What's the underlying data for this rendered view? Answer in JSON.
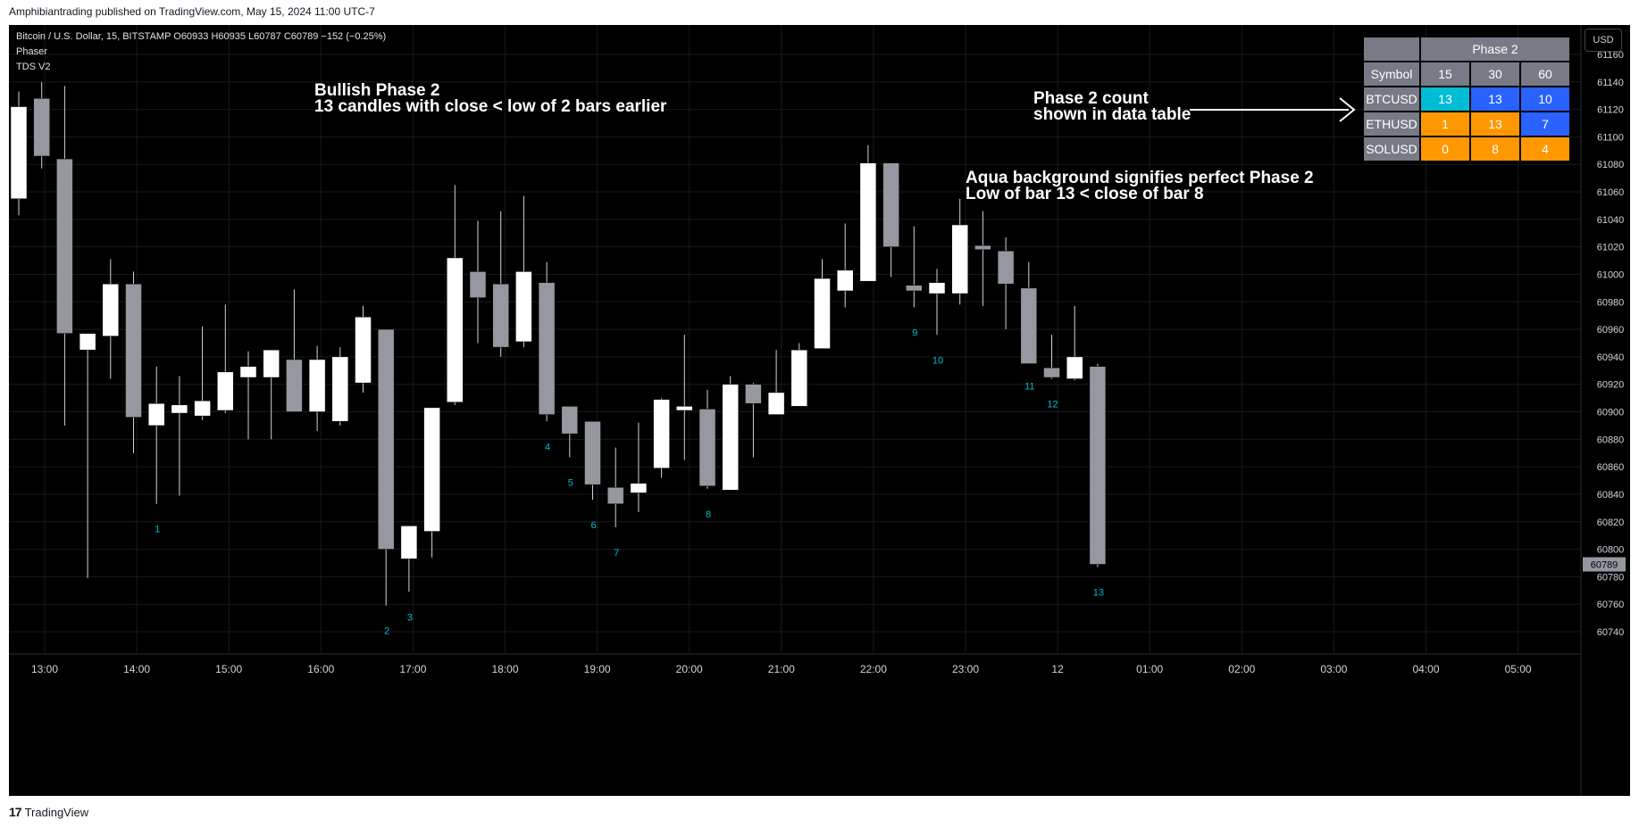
{
  "header": {
    "credit": "Amphibiantrading published on TradingView.com, May 15, 2024 11:00 UTC-7"
  },
  "legend": {
    "symbol_line": "Bitcoin / U.S. Dollar, 15, BITSTAMP  O60933  H60935  L60787  C60789  −152 (−0.25%)",
    "indicator_1": "Phaser",
    "indicator_2": "TDS V2"
  },
  "currency_button": "USD",
  "annotations": {
    "bullish_title": "Bullish Phase 2",
    "bullish_desc": "13 candles with close < low of 2 bars earlier",
    "count_note_1": "Phase 2 count",
    "count_note_2": "shown in data table",
    "aqua_note_1": "Aqua background signifies perfect Phase 2",
    "aqua_note_2": "Low of bar 13 < close of bar 8"
  },
  "table": {
    "header_blank": "",
    "header_title": "Phase 2",
    "columns": [
      "Symbol",
      "15",
      "30",
      "60"
    ],
    "rows": [
      {
        "symbol": "BTCUSD",
        "values": [
          "13",
          "13",
          "10"
        ],
        "colors": [
          "#00bcd4",
          "#2962ff",
          "#2962ff"
        ]
      },
      {
        "symbol": "ETHUSD",
        "values": [
          "1",
          "13",
          "7"
        ],
        "colors": [
          "#ff9800",
          "#ff9800",
          "#2962ff"
        ]
      },
      {
        "symbol": "SOLUSD",
        "values": [
          "0",
          "8",
          "4"
        ],
        "colors": [
          "#ff9800",
          "#ff9800",
          "#ff9800"
        ]
      }
    ]
  },
  "footer": {
    "brand": "TradingView"
  },
  "chart_data": {
    "type": "candlestick",
    "ylim": [
      60720,
      61180
    ],
    "y_ticks": [
      60740,
      60760,
      60780,
      60800,
      60820,
      60840,
      60860,
      60880,
      60900,
      60920,
      60940,
      60960,
      60980,
      61000,
      61020,
      61040,
      61060,
      61080,
      61100,
      61120,
      61140,
      61160
    ],
    "x_ticks": [
      "13:00",
      "14:00",
      "15:00",
      "16:00",
      "17:00",
      "18:00",
      "19:00",
      "20:00",
      "21:00",
      "22:00",
      "23:00",
      "12",
      "01:00",
      "02:00",
      "03:00",
      "04:00",
      "05:00"
    ],
    "last_price_label": "60789",
    "candles": [
      {
        "time": "12:45",
        "o": 61055,
        "h": 61133,
        "l": 61043,
        "c": 61122
      },
      {
        "time": "13:00",
        "o": 61128,
        "h": 61140,
        "l": 61077,
        "c": 61086
      },
      {
        "time": "13:15",
        "o": 61084,
        "h": 61137,
        "l": 60890,
        "c": 60957
      },
      {
        "time": "13:30",
        "o": 60945,
        "h": 60957,
        "l": 60779,
        "c": 60957
      },
      {
        "time": "13:45",
        "o": 60955,
        "h": 61011,
        "l": 60924,
        "c": 60993
      },
      {
        "time": "14:00",
        "o": 60993,
        "h": 61002,
        "l": 60870,
        "c": 60896
      },
      {
        "time": "14:15",
        "o": 60890,
        "h": 60933,
        "l": 60833,
        "c": 60906
      },
      {
        "time": "14:30",
        "o": 60899,
        "h": 60926,
        "l": 60839,
        "c": 60905
      },
      {
        "time": "14:45",
        "o": 60897,
        "h": 60962,
        "l": 60894,
        "c": 60908
      },
      {
        "time": "15:00",
        "o": 60901,
        "h": 60978,
        "l": 60899,
        "c": 60929
      },
      {
        "time": "15:15",
        "o": 60925,
        "h": 60944,
        "l": 60880,
        "c": 60933
      },
      {
        "time": "15:30",
        "o": 60925,
        "h": 60943,
        "l": 60880,
        "c": 60945
      },
      {
        "time": "15:45",
        "o": 60938,
        "h": 60989,
        "l": 60904,
        "c": 60900
      },
      {
        "time": "16:00",
        "o": 60900,
        "h": 60948,
        "l": 60886,
        "c": 60938
      },
      {
        "time": "16:15",
        "o": 60893,
        "h": 60947,
        "l": 60890,
        "c": 60940
      },
      {
        "time": "16:30",
        "o": 60921,
        "h": 60977,
        "l": 60914,
        "c": 60969
      },
      {
        "time": "16:45",
        "o": 60960,
        "h": 60960,
        "l": 60759,
        "c": 60800,
        "label": "2"
      },
      {
        "time": "17:00",
        "o": 60793,
        "h": 60817,
        "l": 60769,
        "c": 60817,
        "label": "3"
      },
      {
        "time": "17:15",
        "o": 60813,
        "h": 60903,
        "l": 60794,
        "c": 60903
      },
      {
        "time": "17:30",
        "o": 60907,
        "h": 61065,
        "l": 60905,
        "c": 61012
      },
      {
        "time": "17:45",
        "o": 61002,
        "h": 61039,
        "l": 60950,
        "c": 60983
      },
      {
        "time": "18:00",
        "o": 60993,
        "h": 61046,
        "l": 60940,
        "c": 60947
      },
      {
        "time": "18:15",
        "o": 60951,
        "h": 61057,
        "l": 60947,
        "c": 61002
      },
      {
        "time": "18:30",
        "o": 60994,
        "h": 61009,
        "l": 60893,
        "c": 60898,
        "label": "4"
      },
      {
        "time": "18:45",
        "o": 60904,
        "h": 60904,
        "l": 60867,
        "c": 60884,
        "label": "5"
      },
      {
        "time": "19:00",
        "o": 60893,
        "h": 60893,
        "l": 60836,
        "c": 60847,
        "label": "6"
      },
      {
        "time": "19:15",
        "o": 60845,
        "h": 60874,
        "l": 60816,
        "c": 60833,
        "label": "7"
      },
      {
        "time": "19:30",
        "o": 60841,
        "h": 60892,
        "l": 60827,
        "c": 60848
      },
      {
        "time": "19:45",
        "o": 60859,
        "h": 60910,
        "l": 60852,
        "c": 60909
      },
      {
        "time": "20:00",
        "o": 60901,
        "h": 60956,
        "l": 60865,
        "c": 60904
      },
      {
        "time": "20:15",
        "o": 60902,
        "h": 60916,
        "l": 60844,
        "c": 60846,
        "label": "8"
      },
      {
        "time": "20:30",
        "o": 60843,
        "h": 60926,
        "l": 60843,
        "c": 60920
      },
      {
        "time": "20:45",
        "o": 60920,
        "h": 60921,
        "l": 60867,
        "c": 60906
      },
      {
        "time": "21:00",
        "o": 60898,
        "h": 60945,
        "l": 60898,
        "c": 60914
      },
      {
        "time": "21:15",
        "o": 60904,
        "h": 60950,
        "l": 60904,
        "c": 60945
      },
      {
        "time": "21:30",
        "o": 60946,
        "h": 61011,
        "l": 60946,
        "c": 60997
      },
      {
        "time": "21:45",
        "o": 60988,
        "h": 61037,
        "l": 60976,
        "c": 61003
      },
      {
        "time": "22:00",
        "o": 60995,
        "h": 61094,
        "l": 60995,
        "c": 61081
      },
      {
        "time": "22:15",
        "o": 61081,
        "h": 61081,
        "l": 60998,
        "c": 61020
      },
      {
        "time": "22:30",
        "o": 60992,
        "h": 61035,
        "l": 60976,
        "c": 60988,
        "label": "9"
      },
      {
        "time": "22:45",
        "o": 60986,
        "h": 61004,
        "l": 60956,
        "c": 60994,
        "label": "10"
      },
      {
        "time": "23:00",
        "o": 60986,
        "h": 61055,
        "l": 60978,
        "c": 61036
      },
      {
        "time": "23:15",
        "o": 61021,
        "h": 61046,
        "l": 60977,
        "c": 61018
      },
      {
        "time": "23:30",
        "o": 61017,
        "h": 61027,
        "l": 60960,
        "c": 60993
      },
      {
        "time": "23:45",
        "o": 60990,
        "h": 61009,
        "l": 60937,
        "c": 60935,
        "label": "11"
      },
      {
        "time": "00:00",
        "o": 60932,
        "h": 60956,
        "l": 60924,
        "c": 60925,
        "label": "12"
      },
      {
        "time": "00:15",
        "o": 60924,
        "h": 60977,
        "l": 60923,
        "c": 60940
      },
      {
        "time": "00:30",
        "o": 60933,
        "h": 60935,
        "l": 60787,
        "c": 60789,
        "label": "13"
      }
    ],
    "bar_1_label": "1"
  }
}
